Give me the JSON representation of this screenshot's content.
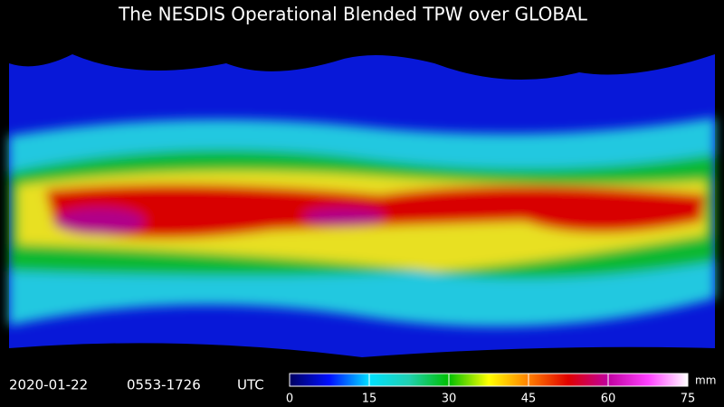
{
  "header": {
    "title": "The NESDIS Operational Blended TPW over GLOBAL"
  },
  "footer": {
    "date": "2020-01-22",
    "time_range": "0553-1726",
    "timezone": "UTC"
  },
  "colorbar": {
    "lim": [
      0,
      75
    ],
    "ticks": [
      0,
      15,
      30,
      45,
      60,
      75
    ],
    "unit": "mm",
    "colors": [
      "#000060",
      "#0010ff",
      "#00e0ff",
      "#20d0b0",
      "#00c000",
      "#ffff00",
      "#ff8000",
      "#e00000",
      "#c000a0",
      "#ff40ff",
      "#ffffff"
    ]
  }
}
